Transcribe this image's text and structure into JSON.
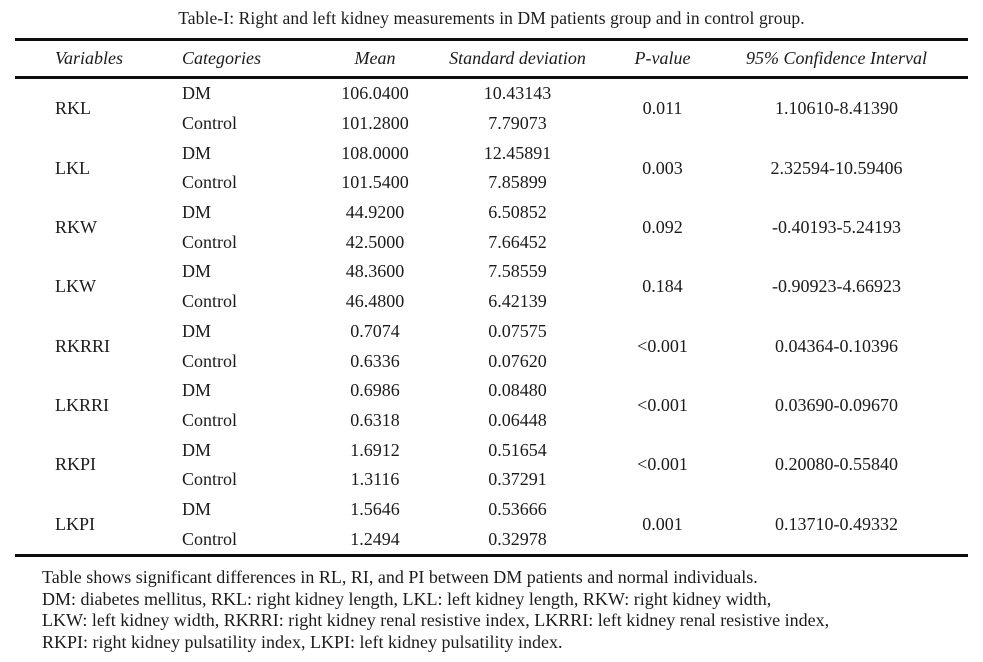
{
  "colors": {
    "background": "#ffffff",
    "text": "#1b1b1b",
    "rule": "#0d0d0d"
  },
  "title": "Table-I: Right and left kidney measurements in DM patients group and in control group.",
  "table": {
    "headers": [
      "Variables",
      "Categories",
      "Mean",
      "Standard deviation",
      "P-value",
      "95% Confidence Interval"
    ],
    "groups": [
      {
        "variable": "RKL",
        "p_value": "0.011",
        "ci": "1.10610-8.41390",
        "rows": [
          {
            "category": "DM",
            "mean": "106.0400",
            "sd": "10.43143"
          },
          {
            "category": "Control",
            "mean": "101.2800",
            "sd": "7.79073"
          }
        ]
      },
      {
        "variable": "LKL",
        "p_value": "0.003",
        "ci": "2.32594-10.59406",
        "rows": [
          {
            "category": "DM",
            "mean": "108.0000",
            "sd": "12.45891"
          },
          {
            "category": "Control",
            "mean": "101.5400",
            "sd": "7.85899"
          }
        ]
      },
      {
        "variable": "RKW",
        "p_value": "0.092",
        "ci": "-0.40193-5.24193",
        "rows": [
          {
            "category": "DM",
            "mean": "44.9200",
            "sd": "6.50852"
          },
          {
            "category": "Control",
            "mean": "42.5000",
            "sd": "7.66452"
          }
        ]
      },
      {
        "variable": "LKW",
        "p_value": "0.184",
        "ci": "-0.90923-4.66923",
        "rows": [
          {
            "category": "DM",
            "mean": "48.3600",
            "sd": "7.58559"
          },
          {
            "category": "Control",
            "mean": "46.4800",
            "sd": "6.42139"
          }
        ]
      },
      {
        "variable": "RKRRI",
        "p_value": "<0.001",
        "ci": "0.04364-0.10396",
        "rows": [
          {
            "category": "DM",
            "mean": "0.7074",
            "sd": "0.07575"
          },
          {
            "category": "Control",
            "mean": "0.6336",
            "sd": "0.07620"
          }
        ]
      },
      {
        "variable": "LKRRI",
        "p_value": "<0.001",
        "ci": "0.03690-0.09670",
        "rows": [
          {
            "category": "DM",
            "mean": "0.6986",
            "sd": "0.08480"
          },
          {
            "category": "Control",
            "mean": "0.6318",
            "sd": "0.06448"
          }
        ]
      },
      {
        "variable": "RKPI",
        "p_value": "<0.001",
        "ci": "0.20080-0.55840",
        "rows": [
          {
            "category": "DM",
            "mean": "1.6912",
            "sd": "0.51654"
          },
          {
            "category": "Control",
            "mean": "1.3116",
            "sd": "0.37291"
          }
        ]
      },
      {
        "variable": "LKPI",
        "p_value": "0.001",
        "ci": "0.13710-0.49332",
        "rows": [
          {
            "category": "DM",
            "mean": "1.5646",
            "sd": "0.53666"
          },
          {
            "category": "Control",
            "mean": "1.2494",
            "sd": "0.32978"
          }
        ]
      }
    ]
  },
  "notes": [
    "Table shows significant differences in RL, RI, and PI between DM patients and normal individuals.",
    "DM: diabetes mellitus, RKL: right kidney length, LKL: left kidney length, RKW: right kidney width,",
    "LKW: left kidney width, RKRRI: right kidney renal resistive index, LKRRI: left kidney renal resistive index,",
    "RKPI: right kidney pulsatility index, LKPI: left kidney pulsatility index."
  ]
}
